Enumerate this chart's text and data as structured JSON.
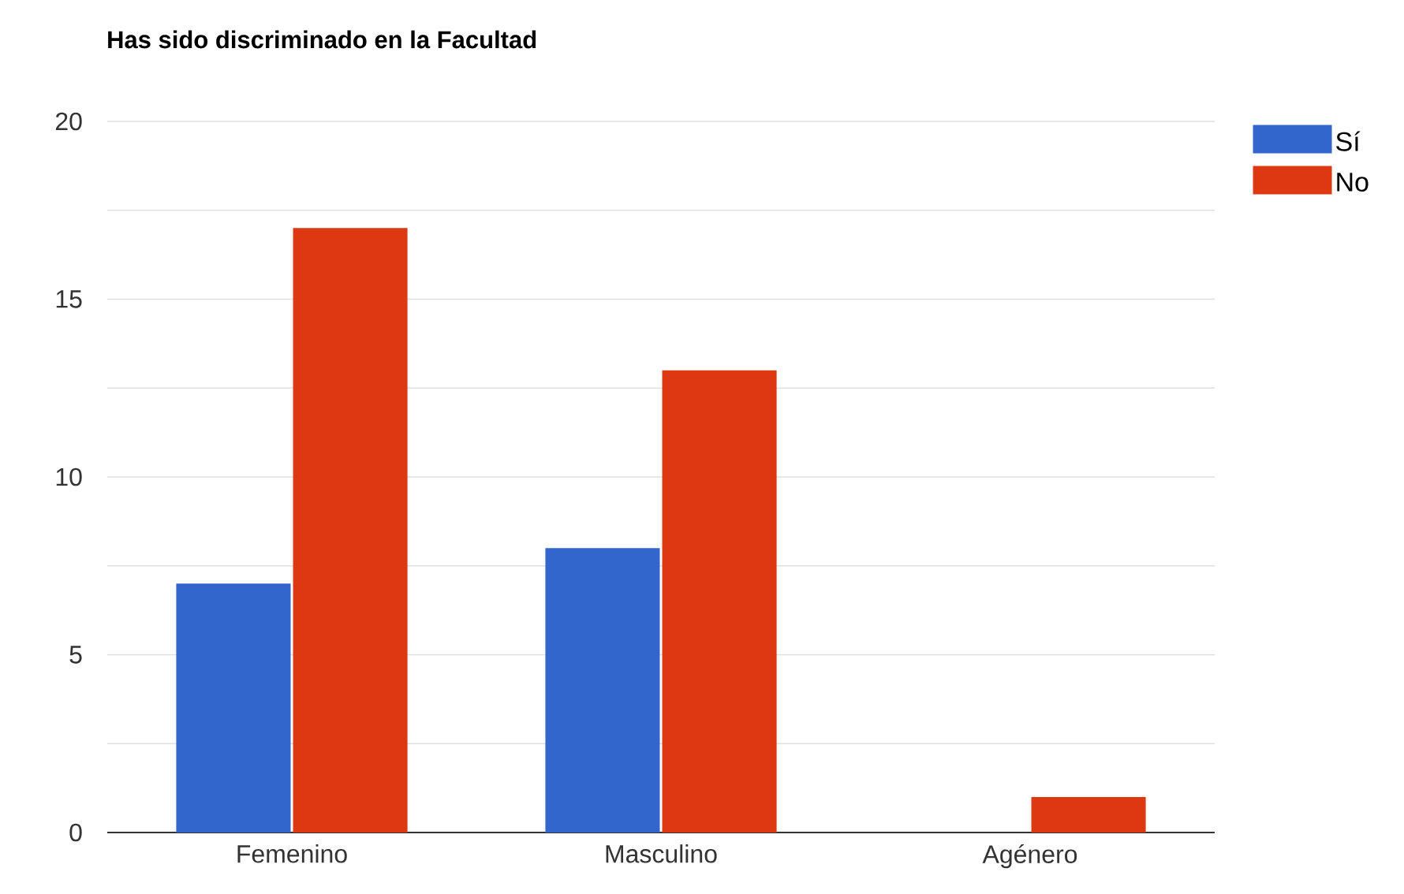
{
  "chart_data": {
    "type": "bar",
    "title": "Has sido discriminado en la Facultad",
    "categories": [
      "Femenino",
      "Masculino",
      "Agénero"
    ],
    "series": [
      {
        "name": "Sí",
        "color": "#3366cc",
        "values": [
          7,
          8,
          0
        ]
      },
      {
        "name": "No",
        "color": "#dc3912",
        "values": [
          17,
          13,
          1
        ]
      }
    ],
    "ylim": [
      0,
      20
    ],
    "yticks": [
      0,
      {
        "value": 2.5,
        "label": null
      },
      5,
      {
        "value": 7.5,
        "label": null
      },
      10,
      {
        "value": 12.5,
        "label": null
      },
      15,
      {
        "value": 17.5,
        "label": null
      },
      20
    ],
    "grid": "y",
    "legend": "top right"
  }
}
